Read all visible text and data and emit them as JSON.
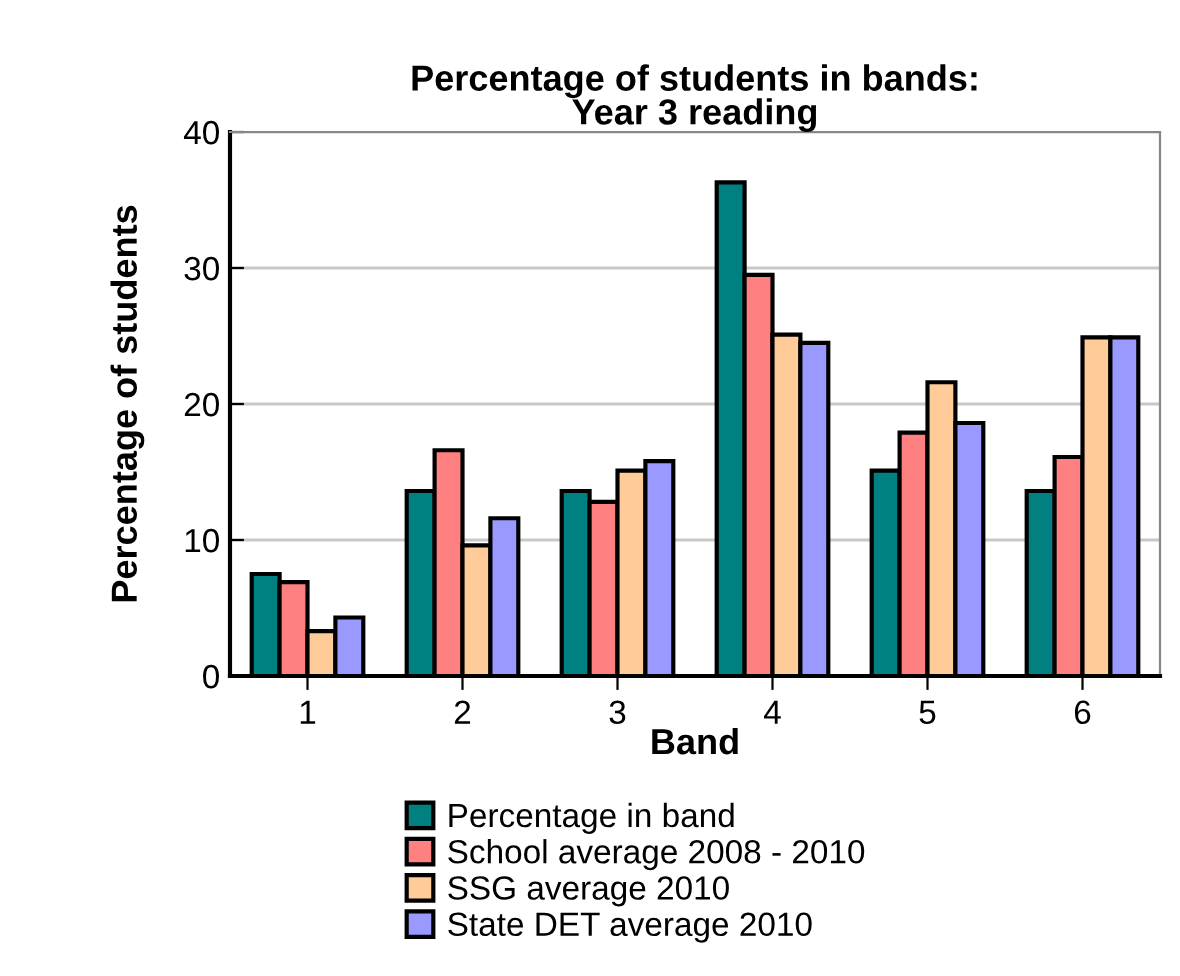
{
  "chart_data": {
    "type": "bar",
    "title": "Percentage of students in bands:\nYear 3 reading",
    "xlabel": "Band",
    "ylabel": "Percentage of students",
    "categories": [
      "1",
      "2",
      "3",
      "4",
      "5",
      "6"
    ],
    "series": [
      {
        "name": "Percentage in band",
        "color": "#008080",
        "values": [
          7.5,
          13.6,
          13.6,
          36.3,
          15.1,
          13.6
        ]
      },
      {
        "name": "School average 2008 - 2010",
        "color": "#ff8080",
        "values": [
          6.9,
          16.6,
          12.8,
          29.5,
          17.9,
          16.1
        ]
      },
      {
        "name": "SSG average 2010",
        "color": "#ffcc99",
        "values": [
          3.3,
          9.6,
          15.1,
          25.1,
          21.6,
          24.9
        ]
      },
      {
        "name": "State DET average 2010",
        "color": "#9999ff",
        "values": [
          4.3,
          11.6,
          15.8,
          24.5,
          18.6,
          24.9
        ]
      }
    ],
    "ylim": [
      0,
      40
    ],
    "yticks": [
      0,
      10,
      20,
      30,
      40
    ],
    "grid": "y",
    "legend": "bottom"
  }
}
